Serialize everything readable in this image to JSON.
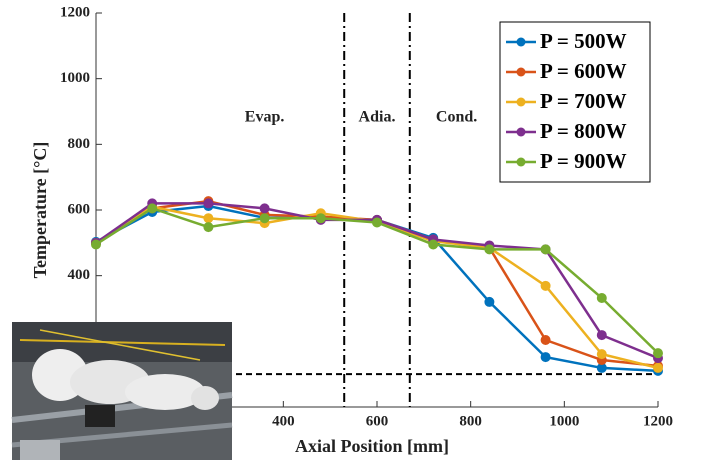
{
  "chart_data": {
    "type": "line",
    "x_label": "Axial Position [mm]",
    "y_label": "Temperature [°C]",
    "x": [
      0,
      120,
      240,
      360,
      480,
      600,
      720,
      840,
      960,
      1080,
      1200
    ],
    "series": [
      {
        "name": "P = 500W",
        "color": "#0072BD",
        "values": [
          503,
          594,
          612,
          576,
          576,
          570,
          515,
          320,
          152,
          119,
          110
        ]
      },
      {
        "name": "P = 600W",
        "color": "#D95319",
        "values": [
          500,
          605,
          627,
          585,
          580,
          570,
          510,
          485,
          204,
          143,
          125
        ]
      },
      {
        "name": "P = 700W",
        "color": "#EDB120",
        "values": [
          500,
          610,
          575,
          560,
          590,
          565,
          505,
          485,
          369,
          161,
          119
        ]
      },
      {
        "name": "P = 800W",
        "color": "#7E2F8E",
        "values": [
          500,
          620,
          620,
          605,
          570,
          570,
          510,
          492,
          480,
          219,
          149
        ]
      },
      {
        "name": "P = 900W",
        "color": "#77AC30",
        "values": [
          495,
          605,
          548,
          575,
          575,
          562,
          495,
          480,
          480,
          332,
          164
        ]
      }
    ],
    "xlim": [
      0,
      1200
    ],
    "ylim": [
      0,
      1200
    ],
    "xticks": [
      400,
      600,
      800,
      1000,
      1200
    ],
    "yticks": [
      400,
      600,
      800,
      1000,
      1200
    ],
    "section_boundaries": [
      530,
      670
    ],
    "reference_level": 100,
    "annotations": [
      {
        "text": "Evap.",
        "x": 360
      },
      {
        "text": "Adia.",
        "x": 600
      },
      {
        "text": "Cond.",
        "x": 770
      }
    ],
    "annotation_y": 880,
    "legend": "upper right"
  }
}
